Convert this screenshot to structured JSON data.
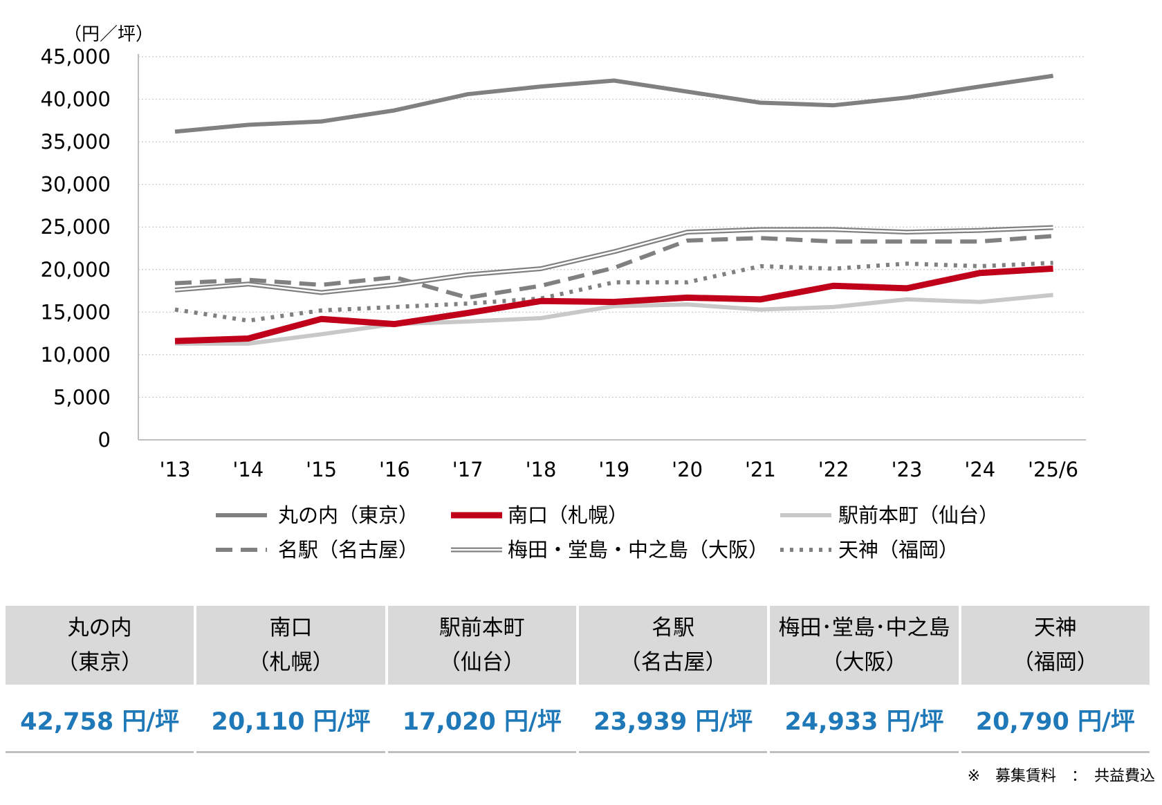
{
  "chart_data": {
    "type": "line",
    "unit_label": "（円／坪）",
    "categories": [
      "'13",
      "'14",
      "'15",
      "'16",
      "'17",
      "'18",
      "'19",
      "'20",
      "'21",
      "'22",
      "'23",
      "'24",
      "'25/6"
    ],
    "ylim": [
      0,
      45000
    ],
    "yticks": [
      0,
      5000,
      10000,
      15000,
      20000,
      25000,
      30000,
      35000,
      40000,
      45000
    ],
    "ytick_labels": [
      "0",
      "5,000",
      "10,000",
      "15,000",
      "20,000",
      "25,000",
      "30,000",
      "35,000",
      "40,000",
      "45,000"
    ],
    "grid": "horizontal dotted",
    "legend_position": "bottom",
    "series": [
      {
        "name": "丸の内（東京）",
        "color": "#808080",
        "style": "solid-thick",
        "values": [
          36200,
          37000,
          37400,
          38700,
          40600,
          41500,
          42200,
          40900,
          39600,
          39300,
          40200,
          41500,
          42758
        ]
      },
      {
        "name": "南口（札幌）",
        "color": "#c0001a",
        "style": "solid-bold",
        "values": [
          11600,
          11900,
          14200,
          13600,
          14900,
          16300,
          16200,
          16700,
          16500,
          18100,
          17800,
          19600,
          20110
        ]
      },
      {
        "name": "駅前本町（仙台）",
        "color": "#c8c8c8",
        "style": "solid-thick",
        "values": [
          11300,
          11300,
          12400,
          13600,
          13900,
          14300,
          15700,
          15900,
          15300,
          15600,
          16500,
          16200,
          17020
        ]
      },
      {
        "name": "名駅（名古屋）",
        "color": "#808080",
        "style": "dashed",
        "values": [
          18400,
          18800,
          18200,
          19100,
          16700,
          18100,
          20200,
          23400,
          23700,
          23300,
          23300,
          23300,
          23939
        ]
      },
      {
        "name": "梅田・堂島・中之島（大阪）",
        "color": "#808080",
        "style": "double",
        "values": [
          17600,
          18300,
          17300,
          18200,
          19400,
          20100,
          22100,
          24400,
          24700,
          24700,
          24400,
          24600,
          24933
        ]
      },
      {
        "name": "天神（福岡）",
        "color": "#808080",
        "style": "dotted",
        "values": [
          15300,
          14000,
          15200,
          15600,
          16000,
          16600,
          18500,
          18500,
          20400,
          20100,
          20700,
          20400,
          20790
        ]
      }
    ]
  },
  "summary_table": [
    {
      "line1": "丸の内",
      "line2": "（東京）",
      "value": "42,758 円/坪"
    },
    {
      "line1": "南口",
      "line2": "（札幌）",
      "value": "20,110 円/坪"
    },
    {
      "line1": "駅前本町",
      "line2": "（仙台）",
      "value": "17,020 円/坪"
    },
    {
      "line1": "名駅",
      "line2": "（名古屋）",
      "value": "23,939 円/坪"
    },
    {
      "line1": "梅田･堂島･中之島",
      "line2": "（大阪）",
      "value": "24,933 円/坪"
    },
    {
      "line1": "天神",
      "line2": "（福岡）",
      "value": "20,790 円/坪"
    }
  ],
  "footnote": "※　募集賃料　：　共益費込"
}
